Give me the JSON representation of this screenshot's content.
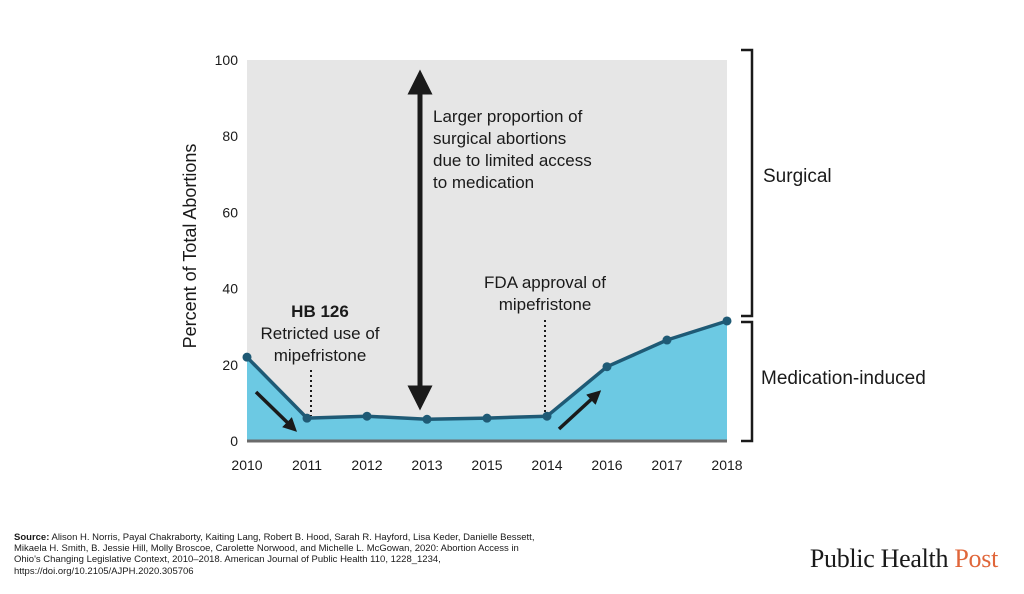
{
  "chart_data": {
    "type": "area",
    "categories": [
      "2010",
      "2011",
      "2012",
      "2013",
      "2015",
      "2014",
      "2016",
      "2017",
      "2018"
    ],
    "series": [
      {
        "name": "Medication-induced",
        "values": [
          22,
          6,
          6.5,
          5.7,
          6,
          6.5,
          19.5,
          26.5,
          31.5
        ],
        "color": "#6cc9e3"
      },
      {
        "name": "Surgical",
        "values": [
          78,
          94,
          93.5,
          94.3,
          94,
          93.5,
          80.5,
          73.5,
          68.5
        ],
        "color": "#e6e6e6"
      }
    ],
    "ylabel": "Percent of Total Abortions",
    "xlabel": "",
    "ylim": [
      0,
      100
    ],
    "yticks": [
      0,
      20,
      40,
      60,
      80,
      100
    ],
    "line_color": "#1f5a75",
    "annotations": {
      "hb126_title": "HB 126",
      "hb126_line1": "Retricted use of",
      "hb126_line2": "mipefristone",
      "fda_line1": "FDA approval of",
      "fda_line2": "mipefristone",
      "arrow_line1": "Larger proportion of",
      "arrow_line2": "surgical abortions",
      "arrow_line3": "due to limited access",
      "arrow_line4": "to medication"
    },
    "bracket_labels": {
      "surgical": "Surgical",
      "medication": "Medication-induced"
    }
  },
  "source": {
    "label": "Source:",
    "text": " Alison H. Norris, Payal Chakraborty, Kaiting Lang, Robert B. Hood, Sarah R. Hayford, Lisa Keder, Danielle Bessett, Mikaela H. Smith, B. Jessie Hill, Molly Broscoe, Carolette Norwood, and Michelle L. McGowan, 2020: Abortion Access in Ohio's Changing Legislative Context, 2010–2018. American Journal of Public Health 110, 1228_1234, https://doi.org/10.2105/AJPH.2020.305706"
  },
  "brand": {
    "part1": "Public Health ",
    "part2": "Post"
  }
}
